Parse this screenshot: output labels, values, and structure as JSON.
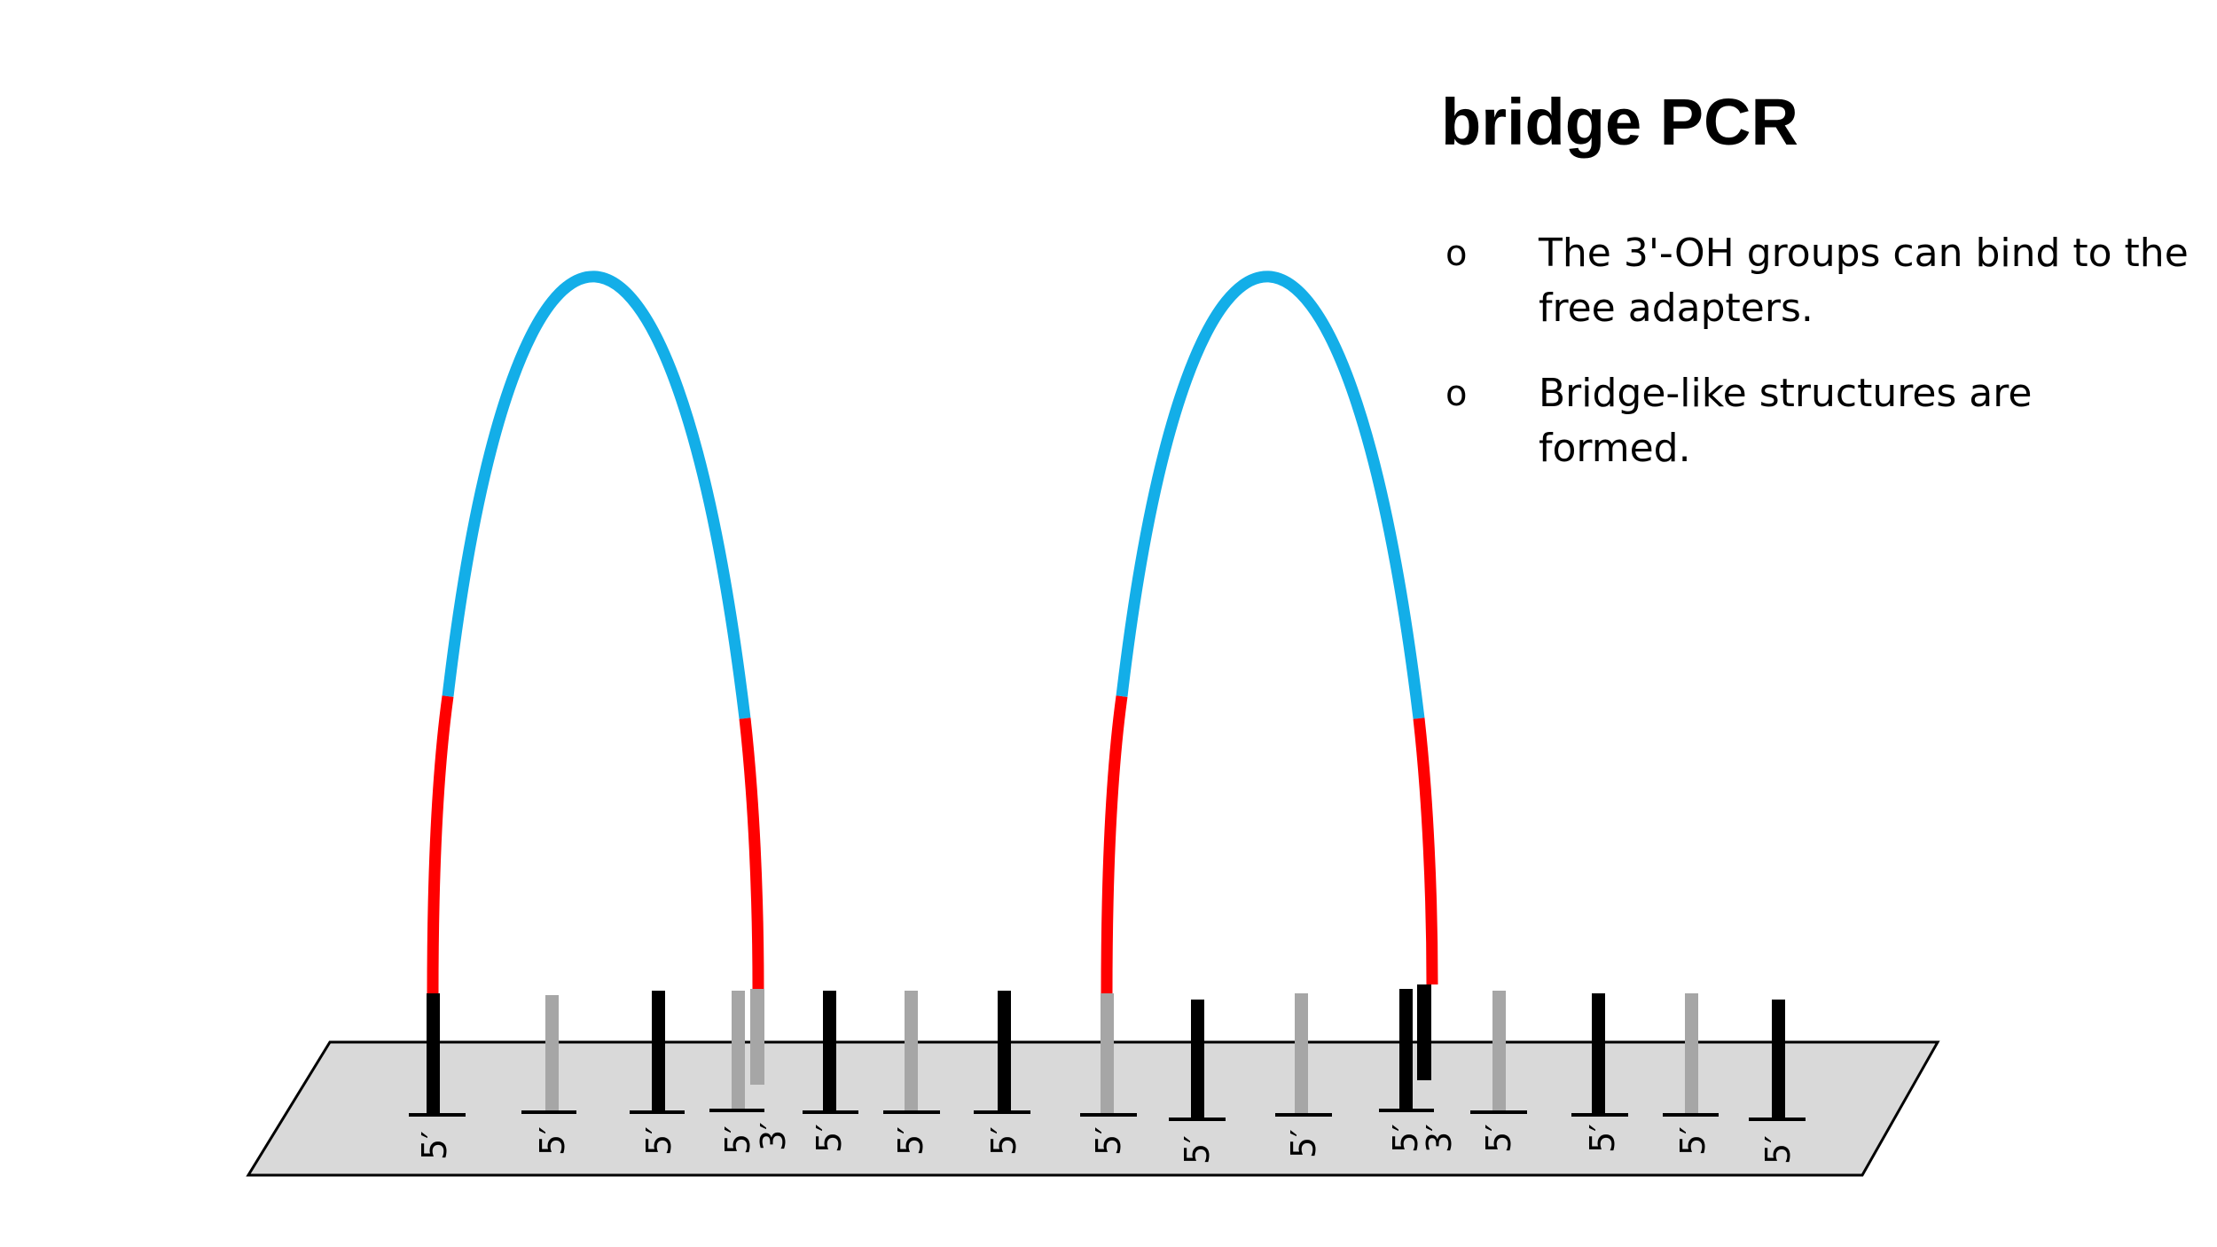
{
  "title": "bridge PCR",
  "bullets": [
    {
      "marker": "o",
      "text": "The 3'-OH groups can bind to the free adapters."
    },
    {
      "marker": "o",
      "text": "Bridge-like structures are formed."
    }
  ],
  "strand_labels": [
    "5′",
    "3′"
  ],
  "colors": {
    "surface": "#d9d9d9",
    "primer_black": "#000000",
    "primer_gray": "#a6a6a6",
    "adapter_red": "#ff0000",
    "insert_blue": "#13aee8"
  }
}
